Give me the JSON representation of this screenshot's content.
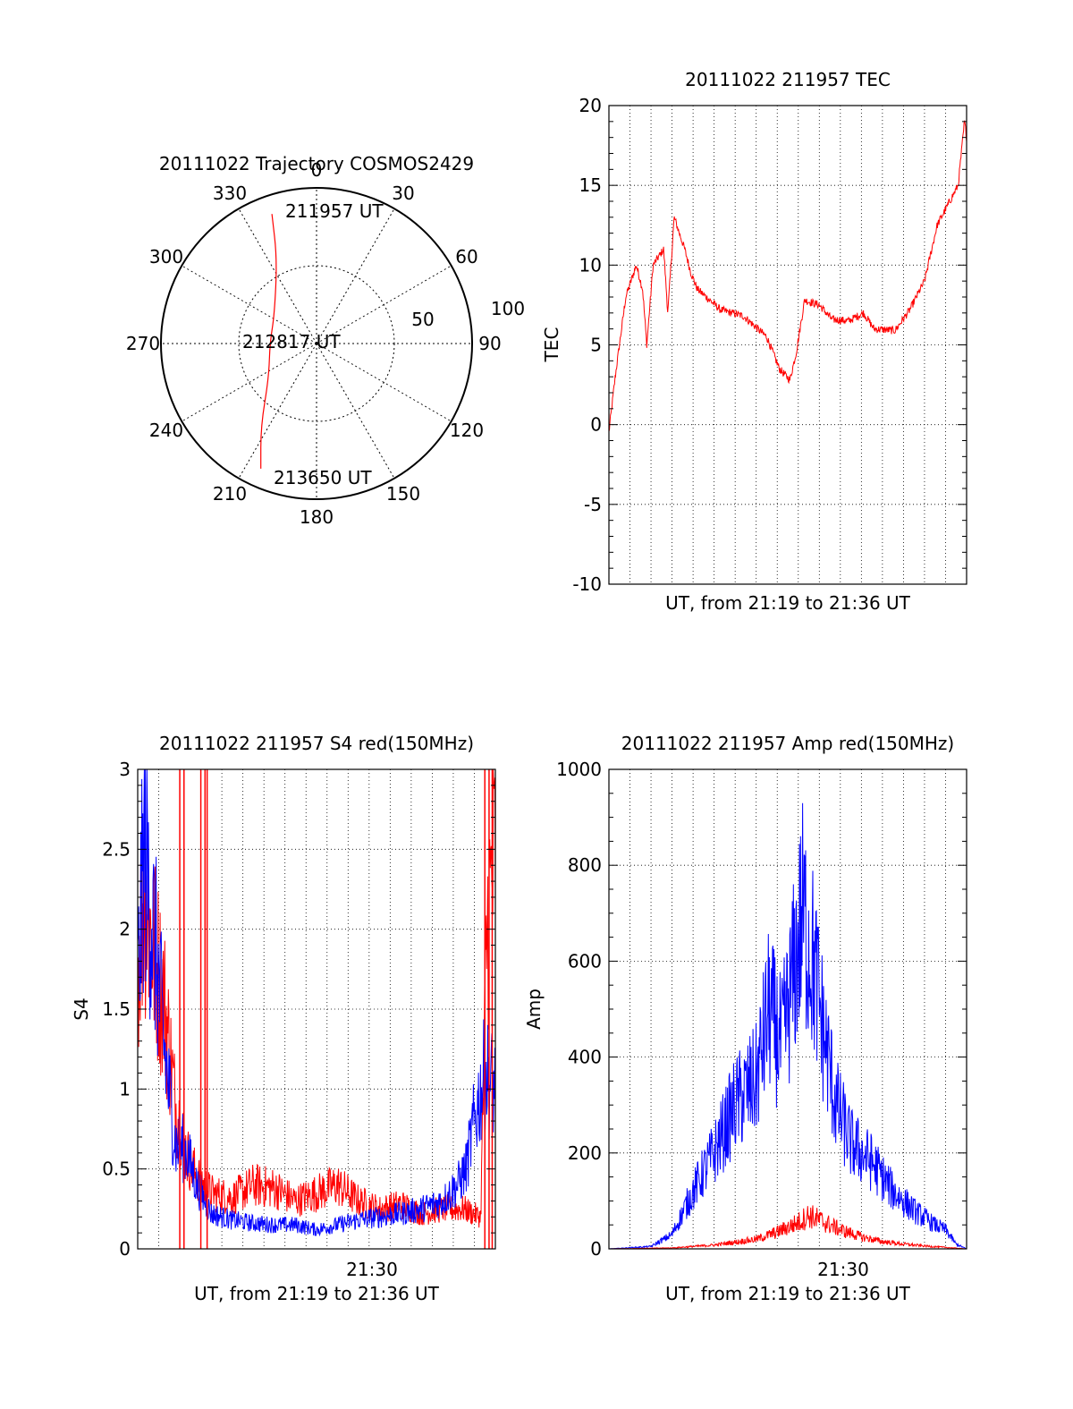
{
  "polar": {
    "title": "20111022 Trajectory COSMOS2429",
    "azimuth_labels": [
      "0",
      "30",
      "60",
      "90",
      "120",
      "150",
      "180",
      "210",
      "240",
      "270",
      "300",
      "330"
    ],
    "radius_labels": [
      "50",
      "100"
    ],
    "point_labels": [
      "211957 UT",
      "212817 UT",
      "213650 UT"
    ],
    "trajectory_color": "#ff0000"
  },
  "chart_data": [
    {
      "type": "polar",
      "title": "20111022 Trajectory COSMOS2429",
      "rlim": [
        0,
        100
      ],
      "azimuths": [
        0,
        30,
        60,
        90,
        120,
        150,
        180,
        210,
        240,
        270,
        300,
        330
      ],
      "radii": [
        50,
        100
      ],
      "series": [
        {
          "color": "#ff0000",
          "points": [
            {
              "az": 341,
              "r": 88,
              "label": "211957 UT"
            },
            {
              "az": 335,
              "r": 60
            },
            {
              "az": 305,
              "r": 33
            },
            {
              "az": 270,
              "r": 30,
              "label": "212817 UT"
            },
            {
              "az": 234,
              "r": 38
            },
            {
              "az": 214,
              "r": 64
            },
            {
              "az": 204,
              "r": 88,
              "label": "213650 UT"
            }
          ]
        }
      ]
    },
    {
      "type": "line",
      "title": "20111022 211957 TEC",
      "xlabel": "UT, from 21:19 to 21:36 UT",
      "ylabel": "TEC",
      "xlim": [
        "21:19",
        "21:36"
      ],
      "ylim": [
        -10,
        20
      ],
      "yticks": [
        "-10",
        "-5",
        "0",
        "5",
        "10",
        "15",
        "20"
      ],
      "grid": true,
      "series": [
        {
          "color": "#ff0000",
          "x": [
            0,
            0.3,
            0.8,
            1.3,
            1.6,
            1.8,
            2.1,
            2.6,
            2.8,
            3.1,
            3.6,
            3.9,
            4.2,
            5.3,
            6.4,
            7.5,
            8.1,
            8.6,
            8.9,
            9.3,
            10.0,
            10.6,
            11.4,
            12.1,
            12.6,
            13.6,
            14.3,
            15.0,
            15.6,
            16.2,
            16.6,
            16.9,
            17.0
          ],
          "y": [
            -0.5,
            3.0,
            8.0,
            10.0,
            8.5,
            5.0,
            10.0,
            11.0,
            7.0,
            13.0,
            11.0,
            9.5,
            8.5,
            7.2,
            6.8,
            5.5,
            3.5,
            2.8,
            4.5,
            7.8,
            7.5,
            6.6,
            6.5,
            7.0,
            6.0,
            5.9,
            7.2,
            9.0,
            12.5,
            14.0,
            15.0,
            19.0,
            18.0
          ]
        }
      ]
    },
    {
      "type": "line",
      "title": "20111022 211957 S4 red(150MHz)",
      "xlabel": "UT, from 21:19 to 21:36 UT",
      "ylabel": "S4",
      "xticklabels": [
        "21:30"
      ],
      "ylim": [
        0,
        3
      ],
      "yticks": [
        "0",
        "0.5",
        "1",
        "1.5",
        "2",
        "2.5",
        "3"
      ],
      "grid": true,
      "series": [
        {
          "name": "red",
          "color": "#ff0000",
          "x": [
            0,
            0.3,
            1.3,
            1.8,
            2.3,
            2.8,
            3.5,
            4.5,
            5.5,
            6.5,
            7.5,
            8.5,
            9.5,
            10.5,
            11.5,
            12.5,
            13.5,
            14.5,
            15.5,
            16.3,
            16.6,
            17.0
          ],
          "y": [
            1.8,
            2.2,
            1.5,
            0.9,
            0.6,
            0.45,
            0.35,
            0.32,
            0.4,
            0.38,
            0.3,
            0.35,
            0.4,
            0.3,
            0.25,
            0.28,
            0.22,
            0.25,
            0.25,
            0.2,
            2.0,
            2.5
          ]
        },
        {
          "name": "blue",
          "color": "#0000ff",
          "x": [
            0,
            0.3,
            0.9,
            1.3,
            1.8,
            2.3,
            2.8,
            3.5,
            4.5,
            5.5,
            6.5,
            7.5,
            8.5,
            9.5,
            10.5,
            11.5,
            12.5,
            13.5,
            14.5,
            15.2,
            15.6,
            16.0,
            16.5,
            17.0
          ],
          "y": [
            1.6,
            2.5,
            1.8,
            1.2,
            0.65,
            0.62,
            0.4,
            0.22,
            0.18,
            0.16,
            0.15,
            0.15,
            0.12,
            0.15,
            0.18,
            0.2,
            0.22,
            0.25,
            0.3,
            0.4,
            0.5,
            0.8,
            1.1,
            1.0
          ]
        }
      ]
    },
    {
      "type": "line",
      "title": "20111022 211957 Amp red(150MHz)",
      "xlabel": "UT, from 21:19 to 21:36 UT",
      "ylabel": "Amp",
      "xticklabels": [
        "21:30"
      ],
      "ylim": [
        0,
        1000
      ],
      "yticks": [
        "0",
        "200",
        "400",
        "600",
        "800",
        "1000"
      ],
      "grid": true,
      "series": [
        {
          "name": "blue",
          "color": "#0000ff",
          "x": [
            0,
            2.0,
            3.0,
            4.0,
            5.0,
            6.0,
            7.0,
            7.6,
            8.2,
            8.7,
            9.2,
            9.7,
            10.2,
            10.8,
            11.5,
            12.5,
            13.5,
            14.5,
            15.5,
            16.0,
            16.5,
            17.0
          ],
          "y": [
            0,
            5,
            30,
            120,
            200,
            300,
            350,
            500,
            420,
            550,
            700,
            600,
            450,
            300,
            220,
            180,
            120,
            80,
            50,
            40,
            10,
            0
          ]
        },
        {
          "name": "red",
          "color": "#ff0000",
          "x": [
            0,
            3.0,
            5.0,
            7.0,
            8.0,
            9.0,
            9.5,
            10.0,
            11.0,
            12.0,
            13.0,
            14.0,
            15.0,
            16.0,
            17.0
          ],
          "y": [
            0,
            2,
            8,
            20,
            35,
            55,
            70,
            60,
            40,
            25,
            15,
            10,
            6,
            3,
            0
          ]
        }
      ]
    }
  ]
}
